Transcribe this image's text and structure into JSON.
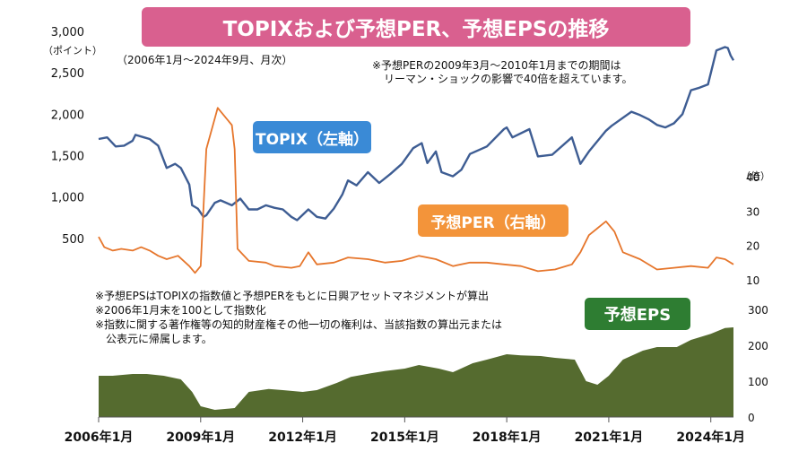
{
  "chart_data": {
    "title": "TOPIXおよび予想PER、予想EPSの推移",
    "subtitle": "（2006年1月～2024年9月、月次）",
    "note_per": [
      "※予想PERの2009年3月～2010年1月までの期間は",
      "リーマン・ショックの影響で40倍を超えています。"
    ],
    "footnotes": [
      "※予想EPSはTOPIXの指数値と予想PERをもとに日興アセットマネジメントが算出",
      "※2006年1月末を100として指数化",
      "※指数に関する著作権等の知的財産権その他一切の権利は、当該指数の算出元または",
      "　公表元に帰属します。"
    ],
    "left_axis": {
      "unit": "（ポイント）",
      "ticks": [
        "3,000",
        "2,500",
        "2,000",
        "1,500",
        "1,000",
        "500"
      ],
      "range": [
        0,
        3000
      ]
    },
    "right_axis_per": {
      "unit": "（倍）",
      "ticks": [
        "40",
        "30",
        "20",
        "10"
      ],
      "range": [
        10,
        40
      ]
    },
    "right_axis_eps": {
      "ticks": [
        "300",
        "200",
        "100",
        "0"
      ],
      "range": [
        0,
        300
      ]
    },
    "x_ticks": [
      "2006年1月",
      "2009年1月",
      "2012年1月",
      "2015年1月",
      "2018年1月",
      "2021年1月",
      "2024年1月"
    ],
    "x_range": [
      "2006-01",
      "2024-09"
    ],
    "series": [
      {
        "name": "TOPIX（左軸）",
        "type": "line",
        "axis": "left",
        "color": "#3e5d93",
        "points": [
          [
            "2006-01",
            1700
          ],
          [
            "2006-04",
            1720
          ],
          [
            "2006-07",
            1610
          ],
          [
            "2006-10",
            1620
          ],
          [
            "2007-01",
            1680
          ],
          [
            "2007-02",
            1750
          ],
          [
            "2007-05",
            1720
          ],
          [
            "2007-07",
            1700
          ],
          [
            "2007-10",
            1620
          ],
          [
            "2008-01",
            1350
          ],
          [
            "2008-04",
            1400
          ],
          [
            "2008-06",
            1350
          ],
          [
            "2008-09",
            1150
          ],
          [
            "2008-10",
            900
          ],
          [
            "2008-12",
            860
          ],
          [
            "2009-02",
            760
          ],
          [
            "2009-03",
            780
          ],
          [
            "2009-06",
            930
          ],
          [
            "2009-08",
            960
          ],
          [
            "2009-12",
            900
          ],
          [
            "2010-03",
            980
          ],
          [
            "2010-06",
            850
          ],
          [
            "2010-09",
            850
          ],
          [
            "2010-12",
            900
          ],
          [
            "2011-03",
            870
          ],
          [
            "2011-06",
            850
          ],
          [
            "2011-09",
            760
          ],
          [
            "2011-11",
            720
          ],
          [
            "2012-03",
            850
          ],
          [
            "2012-06",
            760
          ],
          [
            "2012-09",
            740
          ],
          [
            "2012-12",
            860
          ],
          [
            "2013-03",
            1030
          ],
          [
            "2013-05",
            1200
          ],
          [
            "2013-08",
            1140
          ],
          [
            "2013-12",
            1300
          ],
          [
            "2014-04",
            1170
          ],
          [
            "2014-08",
            1280
          ],
          [
            "2014-12",
            1400
          ],
          [
            "2015-04",
            1590
          ],
          [
            "2015-07",
            1650
          ],
          [
            "2015-09",
            1410
          ],
          [
            "2015-12",
            1550
          ],
          [
            "2016-02",
            1300
          ],
          [
            "2016-06",
            1250
          ],
          [
            "2016-09",
            1330
          ],
          [
            "2016-12",
            1520
          ],
          [
            "2017-06",
            1610
          ],
          [
            "2017-12",
            1820
          ],
          [
            "2018-01",
            1840
          ],
          [
            "2018-03",
            1720
          ],
          [
            "2018-09",
            1820
          ],
          [
            "2018-12",
            1490
          ],
          [
            "2019-05",
            1510
          ],
          [
            "2019-12",
            1720
          ],
          [
            "2020-03",
            1400
          ],
          [
            "2020-06",
            1550
          ],
          [
            "2020-12",
            1800
          ],
          [
            "2021-02",
            1860
          ],
          [
            "2021-09",
            2030
          ],
          [
            "2021-12",
            1990
          ],
          [
            "2022-03",
            1940
          ],
          [
            "2022-06",
            1870
          ],
          [
            "2022-09",
            1840
          ],
          [
            "2022-12",
            1890
          ],
          [
            "2023-03",
            2000
          ],
          [
            "2023-06",
            2290
          ],
          [
            "2023-09",
            2320
          ],
          [
            "2023-12",
            2360
          ],
          [
            "2024-03",
            2770
          ],
          [
            "2024-06",
            2810
          ],
          [
            "2024-07",
            2800
          ],
          [
            "2024-08",
            2710
          ],
          [
            "2024-09",
            2650
          ]
        ]
      },
      {
        "name": "予想PER（右軸）",
        "type": "line",
        "axis": "right_per",
        "color": "#e6762c",
        "points": [
          [
            "2006-01",
            22.5
          ],
          [
            "2006-03",
            19.5
          ],
          [
            "2006-06",
            18.5
          ],
          [
            "2006-09",
            19
          ],
          [
            "2007-01",
            18.5
          ],
          [
            "2007-04",
            19.5
          ],
          [
            "2007-07",
            18.5
          ],
          [
            "2007-10",
            17
          ],
          [
            "2008-01",
            16
          ],
          [
            "2008-05",
            17
          ],
          [
            "2008-09",
            14
          ],
          [
            "2008-11",
            12
          ],
          [
            "2009-01",
            14
          ],
          [
            "2009-03",
            48
          ],
          [
            "2009-07",
            60
          ],
          [
            "2009-12",
            55
          ],
          [
            "2010-01",
            48
          ],
          [
            "2010-02",
            19
          ],
          [
            "2010-06",
            15.5
          ],
          [
            "2010-12",
            15
          ],
          [
            "2011-03",
            14
          ],
          [
            "2011-09",
            13.5
          ],
          [
            "2011-12",
            14
          ],
          [
            "2012-03",
            18
          ],
          [
            "2012-06",
            14.5
          ],
          [
            "2012-12",
            15
          ],
          [
            "2013-05",
            16.5
          ],
          [
            "2013-12",
            16
          ],
          [
            "2014-06",
            15
          ],
          [
            "2014-12",
            15.5
          ],
          [
            "2015-06",
            17
          ],
          [
            "2015-12",
            16
          ],
          [
            "2016-06",
            14
          ],
          [
            "2016-12",
            15
          ],
          [
            "2017-06",
            15
          ],
          [
            "2017-12",
            14.5
          ],
          [
            "2018-06",
            14
          ],
          [
            "2018-12",
            12.5
          ],
          [
            "2019-06",
            13
          ],
          [
            "2019-12",
            14.5
          ],
          [
            "2020-03",
            18
          ],
          [
            "2020-06",
            23
          ],
          [
            "2020-09",
            25
          ],
          [
            "2020-12",
            27
          ],
          [
            "2021-03",
            24
          ],
          [
            "2021-06",
            18
          ],
          [
            "2021-12",
            16
          ],
          [
            "2022-06",
            13
          ],
          [
            "2022-12",
            13.5
          ],
          [
            "2023-06",
            14
          ],
          [
            "2023-12",
            13.5
          ],
          [
            "2024-03",
            16.5
          ],
          [
            "2024-06",
            16
          ],
          [
            "2024-09",
            14.5
          ]
        ]
      },
      {
        "name": "予想EPS",
        "type": "area",
        "axis": "right_eps",
        "color": "#556b2f",
        "points": [
          [
            "2006-01",
            115
          ],
          [
            "2006-06",
            115
          ],
          [
            "2007-01",
            120
          ],
          [
            "2007-06",
            120
          ],
          [
            "2007-12",
            115
          ],
          [
            "2008-06",
            105
          ],
          [
            "2008-10",
            70
          ],
          [
            "2009-01",
            30
          ],
          [
            "2009-06",
            20
          ],
          [
            "2010-01",
            25
          ],
          [
            "2010-06",
            70
          ],
          [
            "2011-01",
            78
          ],
          [
            "2011-06",
            75
          ],
          [
            "2012-01",
            70
          ],
          [
            "2012-06",
            75
          ],
          [
            "2013-01",
            95
          ],
          [
            "2013-06",
            112
          ],
          [
            "2014-01",
            122
          ],
          [
            "2014-06",
            128
          ],
          [
            "2015-01",
            135
          ],
          [
            "2015-06",
            145
          ],
          [
            "2016-01",
            135
          ],
          [
            "2016-06",
            125
          ],
          [
            "2017-01",
            150
          ],
          [
            "2017-06",
            160
          ],
          [
            "2018-01",
            175
          ],
          [
            "2018-06",
            172
          ],
          [
            "2019-01",
            170
          ],
          [
            "2019-06",
            165
          ],
          [
            "2020-01",
            160
          ],
          [
            "2020-05",
            100
          ],
          [
            "2020-09",
            90
          ],
          [
            "2021-01",
            115
          ],
          [
            "2021-06",
            160
          ],
          [
            "2022-01",
            185
          ],
          [
            "2022-06",
            195
          ],
          [
            "2023-01",
            195
          ],
          [
            "2023-06",
            215
          ],
          [
            "2024-01",
            232
          ],
          [
            "2024-06",
            248
          ],
          [
            "2024-09",
            250
          ]
        ]
      }
    ]
  }
}
